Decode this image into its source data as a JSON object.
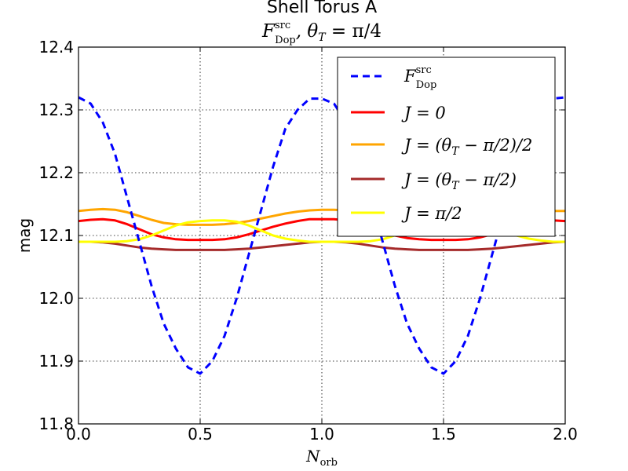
{
  "chart_data": {
    "type": "line",
    "title": "Shell Torus A",
    "subtitle": "F_Dop^src, θ_T = π/4",
    "subtitle_parts": {
      "F": "F",
      "sup": "src",
      "sub": "Dop",
      "rest": ", θ",
      "theta_sub": "T",
      "eq": " = π/4"
    },
    "xlabel": "N",
    "xlabel_sub": "orb",
    "ylabel": "mag",
    "xlim": [
      0.0,
      2.0
    ],
    "ylim": [
      11.8,
      12.4
    ],
    "xticks": [
      0.0,
      0.5,
      1.0,
      1.5,
      2.0
    ],
    "xtick_labels": [
      "0.0",
      "0.5",
      "1.0",
      "1.5",
      "2.0"
    ],
    "yticks": [
      11.8,
      11.9,
      12.0,
      12.1,
      12.2,
      12.3,
      12.4
    ],
    "ytick_labels": [
      "11.8",
      "11.9",
      "12.0",
      "12.1",
      "12.2",
      "12.3",
      "12.4"
    ],
    "grid": true,
    "legend_position": "top-right",
    "x": [
      0.0,
      0.05,
      0.1,
      0.15,
      0.2,
      0.25,
      0.3,
      0.35,
      0.4,
      0.45,
      0.5,
      0.55,
      0.6,
      0.65,
      0.7,
      0.75,
      0.8,
      0.85,
      0.9,
      0.95,
      1.0,
      1.05,
      1.1,
      1.15,
      1.2,
      1.25,
      1.3,
      1.35,
      1.4,
      1.45,
      1.5,
      1.55,
      1.6,
      1.65,
      1.7,
      1.75,
      1.8,
      1.85,
      1.9,
      1.95,
      2.0
    ],
    "series": [
      {
        "name": "F_Dop^src",
        "legend": {
          "F": "F",
          "sup": "src",
          "sub": "Dop"
        },
        "color": "#0000ff",
        "style": "dashed",
        "values": [
          12.32,
          12.31,
          12.28,
          12.23,
          12.16,
          12.09,
          12.02,
          11.96,
          11.92,
          11.89,
          11.88,
          11.9,
          11.94,
          12.0,
          12.07,
          12.14,
          12.21,
          12.27,
          12.3,
          12.318,
          12.318,
          12.31,
          12.28,
          12.23,
          12.16,
          12.09,
          12.02,
          11.96,
          11.92,
          11.89,
          11.88,
          11.9,
          11.94,
          12.0,
          12.07,
          12.14,
          12.21,
          12.27,
          12.3,
          12.318,
          12.32
        ]
      },
      {
        "name": "J = 0",
        "legend": {
          "text": "J = 0"
        },
        "color": "#ff0000",
        "style": "solid",
        "values": [
          12.123,
          12.125,
          12.126,
          12.124,
          12.118,
          12.11,
          12.102,
          12.097,
          12.094,
          12.093,
          12.093,
          12.093,
          12.094,
          12.097,
          12.102,
          12.108,
          12.114,
          12.119,
          12.123,
          12.126,
          12.126,
          12.126,
          12.124,
          12.12,
          12.114,
          12.107,
          12.1,
          12.096,
          12.094,
          12.093,
          12.093,
          12.093,
          12.094,
          12.097,
          12.102,
          12.108,
          12.114,
          12.119,
          12.122,
          12.124,
          12.123
        ]
      },
      {
        "name": "J = (θ_T − π/2)/2",
        "legend": {
          "text": "J = (θ",
          "sub": "T",
          "rest": " − π/2)/2"
        },
        "color": "#ffa500",
        "style": "solid",
        "values": [
          12.139,
          12.141,
          12.142,
          12.141,
          12.137,
          12.131,
          12.125,
          12.12,
          12.118,
          12.117,
          12.117,
          12.117,
          12.118,
          12.12,
          12.123,
          12.127,
          12.131,
          12.135,
          12.138,
          12.14,
          12.141,
          12.141,
          12.14,
          12.137,
          12.132,
          12.127,
          12.122,
          12.119,
          12.117,
          12.117,
          12.117,
          12.117,
          12.118,
          12.12,
          12.123,
          12.127,
          12.131,
          12.135,
          12.137,
          12.139,
          12.139
        ]
      },
      {
        "name": "J = (θ_T − π/2)",
        "legend": {
          "text": "J = (θ",
          "sub": "T",
          "rest": " − π/2)"
        },
        "color": "#a52a2a",
        "style": "solid",
        "values": [
          12.09,
          12.09,
          12.089,
          12.087,
          12.084,
          12.081,
          12.079,
          12.078,
          12.077,
          12.077,
          12.077,
          12.077,
          12.077,
          12.078,
          12.079,
          12.081,
          12.083,
          12.085,
          12.087,
          12.089,
          12.09,
          12.09,
          12.089,
          12.087,
          12.084,
          12.081,
          12.079,
          12.078,
          12.077,
          12.077,
          12.077,
          12.077,
          12.077,
          12.078,
          12.079,
          12.081,
          12.083,
          12.085,
          12.087,
          12.089,
          12.09
        ]
      },
      {
        "name": "J = π/2",
        "legend": {
          "text": "J = π/2"
        },
        "color": "#ffff00",
        "style": "solid",
        "values": [
          12.09,
          12.09,
          12.09,
          12.09,
          12.091,
          12.094,
          12.1,
          12.108,
          12.116,
          12.121,
          12.123,
          12.124,
          12.124,
          12.122,
          12.116,
          12.108,
          12.1,
          12.095,
          12.092,
          12.09,
          12.09,
          12.09,
          12.09,
          12.09,
          12.091,
          12.094,
          12.1,
          12.108,
          12.116,
          12.121,
          12.123,
          12.124,
          12.124,
          12.122,
          12.116,
          12.108,
          12.1,
          12.095,
          12.092,
          12.09,
          12.09
        ]
      }
    ]
  }
}
